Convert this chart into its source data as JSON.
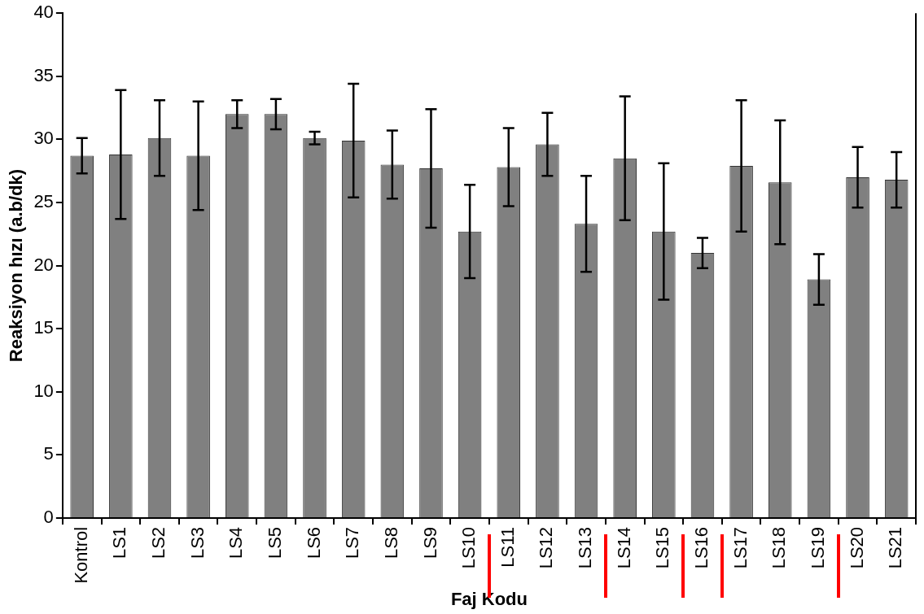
{
  "chart_data": {
    "type": "bar",
    "xlabel": "Faj Kodu",
    "ylabel": "Reaksiyon hızı (a.b/dk)",
    "categories": [
      "Kontrol",
      "LS1",
      "LS2",
      "LS3",
      "LS4",
      "LS5",
      "LS6",
      "LS7",
      "LS8",
      "LS9",
      "LS10",
      "LS11",
      "LS12",
      "LS13",
      "LS14",
      "LS15",
      "LS16",
      "LS17",
      "LS18",
      "LS19",
      "LS20",
      "LS21"
    ],
    "values": [
      28.7,
      28.8,
      30.1,
      28.7,
      32.0,
      32.0,
      30.1,
      29.9,
      28.0,
      27.7,
      22.7,
      27.8,
      29.6,
      23.3,
      28.5,
      22.7,
      21.0,
      27.9,
      26.6,
      18.9,
      27.0,
      26.8
    ],
    "errors": [
      1.4,
      5.1,
      3.0,
      4.3,
      1.1,
      1.2,
      0.5,
      4.5,
      2.7,
      4.7,
      3.7,
      3.1,
      2.5,
      3.8,
      4.9,
      5.4,
      1.2,
      5.2,
      4.9,
      2.0,
      2.4,
      2.2
    ],
    "color": "#808080",
    "ylim": [
      0,
      40
    ],
    "yticks": [
      0,
      5,
      10,
      15,
      20,
      25,
      30,
      35,
      40
    ],
    "grid": false,
    "legend": false
  }
}
